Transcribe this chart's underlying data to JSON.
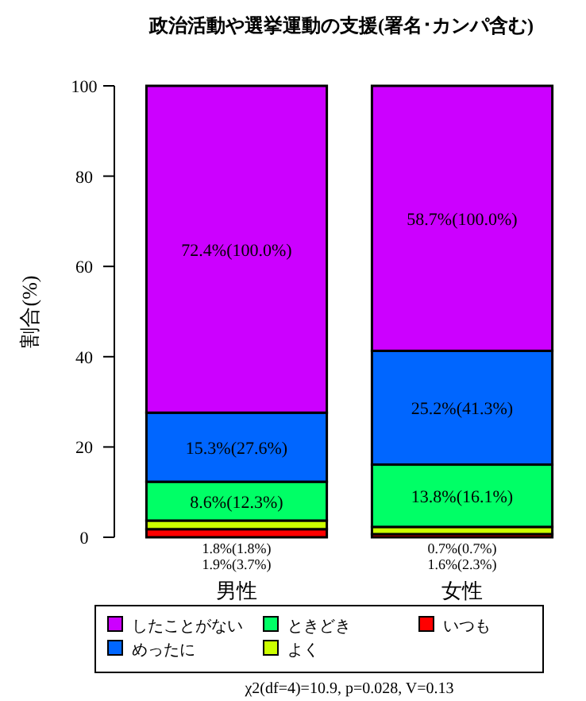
{
  "chart_data": {
    "type": "bar",
    "stacked": true,
    "title": "政治活動や選挙運動の支援(署名･カンパ含む)",
    "ylabel": "割合(%)",
    "categories": [
      "男性",
      "女性"
    ],
    "series": [
      {
        "name": "いつも",
        "color": "#ff0000",
        "values": [
          1.8,
          0.7
        ],
        "value_labels": [
          "1.8%(1.8%)",
          "0.7%(0.7%)"
        ]
      },
      {
        "name": "よく",
        "color": "#ccff00",
        "values": [
          1.9,
          1.6
        ],
        "value_labels": [
          "1.9%(3.7%)",
          "1.6%(2.3%)"
        ]
      },
      {
        "name": "ときどき",
        "color": "#00ff66",
        "values": [
          8.6,
          13.8
        ],
        "value_labels": [
          "8.6%(12.3%)",
          "13.8%(16.1%)"
        ]
      },
      {
        "name": "めったに",
        "color": "#0066ff",
        "values": [
          15.3,
          25.2
        ],
        "value_labels": [
          "15.3%(27.6%)",
          "25.2%(41.3%)"
        ]
      },
      {
        "name": "したことがない",
        "color": "#cc00ff",
        "values": [
          72.4,
          58.7
        ],
        "value_labels": [
          "72.4%(100.0%)",
          "58.7%(100.0%)"
        ]
      }
    ],
    "ylim": [
      0,
      100
    ],
    "yticks": [
      0,
      20,
      40,
      60,
      80,
      100
    ],
    "grid": false,
    "legend": "bottom",
    "annotations": [
      "χ2(df=4)=10.9, p=0.028, V=0.13"
    ]
  }
}
